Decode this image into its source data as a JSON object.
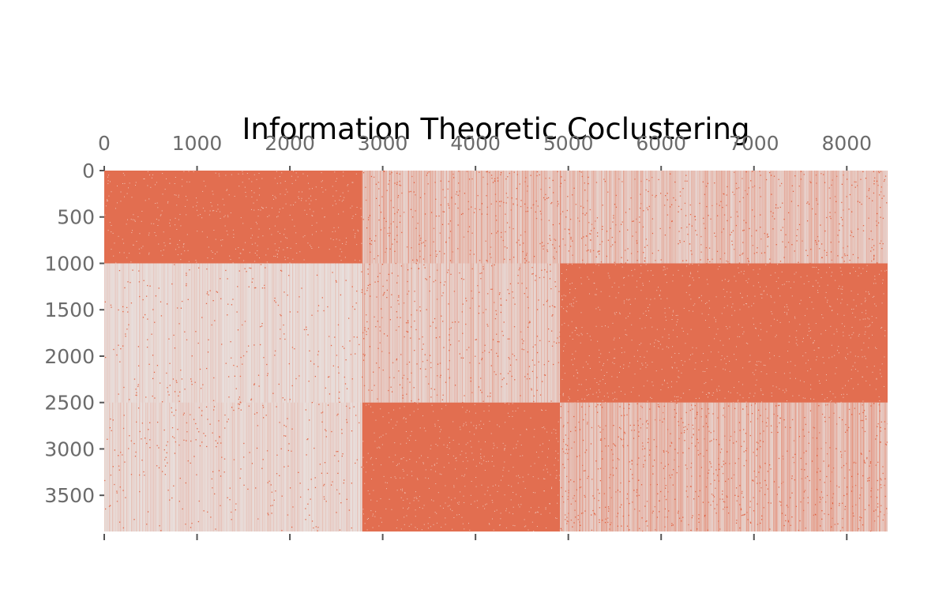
{
  "chart_data": {
    "type": "heatmap",
    "title": "Information Theoretic Coclustering",
    "xlabel": "",
    "ylabel": "",
    "xlim": [
      0,
      8440
    ],
    "ylim": [
      0,
      3890
    ],
    "x_ticks": [
      "0",
      "1000",
      "2000",
      "3000",
      "4000",
      "5000",
      "6000",
      "7000",
      "8000"
    ],
    "x_tick_values": [
      0,
      1000,
      2000,
      3000,
      4000,
      5000,
      6000,
      7000,
      8000
    ],
    "y_ticks": [
      "0",
      "500",
      "1000",
      "1500",
      "2000",
      "2500",
      "3000",
      "3500"
    ],
    "y_tick_values": [
      0,
      500,
      1000,
      1500,
      2000,
      2500,
      3000,
      3500
    ],
    "x_axis_position": "top and bottom",
    "grid": false,
    "colors": {
      "background": "#e9e9e9",
      "mark": "#e1694a"
    },
    "row_clusters": [
      [
        0,
        1000
      ],
      [
        1000,
        2500
      ],
      [
        2500,
        3890
      ]
    ],
    "col_clusters": [
      [
        0,
        2780
      ],
      [
        2780,
        4910
      ],
      [
        4910,
        8440
      ]
    ],
    "block_density": [
      [
        0.93,
        0.55,
        0.52
      ],
      [
        0.25,
        0.45,
        0.95
      ],
      [
        0.28,
        0.97,
        0.62
      ]
    ]
  }
}
